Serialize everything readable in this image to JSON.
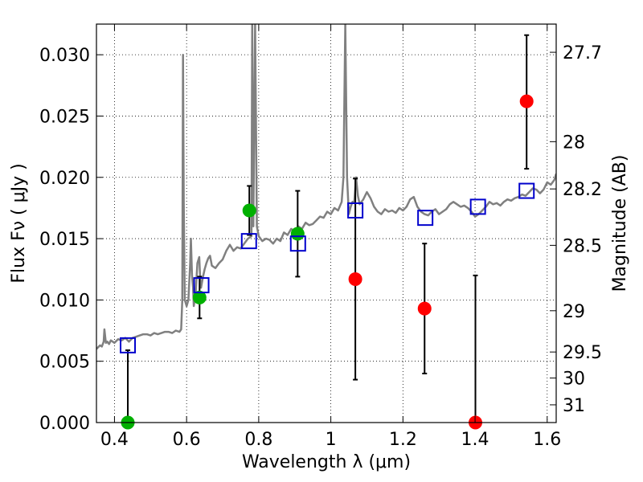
{
  "chart_data": {
    "type": "scatter",
    "xlabel": "Wavelength  λ (μm)",
    "ylabel": "Flux  Fν  ( μJy )",
    "y2label": "Magnitude (AB)",
    "xlim": [
      0.35,
      1.625
    ],
    "ylim": [
      0.0,
      0.0325
    ],
    "grid": true,
    "x_ticks": [
      {
        "value": 0.4,
        "label": "0.4"
      },
      {
        "value": 0.6,
        "label": "0.6"
      },
      {
        "value": 0.8,
        "label": "0.8"
      },
      {
        "value": 1.0,
        "label": "1"
      },
      {
        "value": 1.2,
        "label": "1.2"
      },
      {
        "value": 1.4,
        "label": "1.4"
      },
      {
        "value": 1.6,
        "label": "1.6"
      }
    ],
    "y_ticks": [
      {
        "value": 0.0,
        "label": "0.000"
      },
      {
        "value": 0.005,
        "label": "0.005"
      },
      {
        "value": 0.01,
        "label": "0.010"
      },
      {
        "value": 0.015,
        "label": "0.015"
      },
      {
        "value": 0.02,
        "label": "0.020"
      },
      {
        "value": 0.025,
        "label": "0.025"
      },
      {
        "value": 0.03,
        "label": "0.030"
      }
    ],
    "y2_ticks": [
      {
        "mag": 27.7,
        "label": "27.7"
      },
      {
        "mag": 28.0,
        "label": "28"
      },
      {
        "mag": 28.2,
        "label": "28.2"
      },
      {
        "mag": 28.5,
        "label": "28.5"
      },
      {
        "mag": 29.0,
        "label": "29"
      },
      {
        "mag": 29.5,
        "label": "29.5"
      },
      {
        "mag": 30.0,
        "label": "30"
      },
      {
        "mag": 31.0,
        "label": "31"
      }
    ],
    "colors": {
      "template": "#808080",
      "model_box": "#0000cc",
      "detection": "#00b000",
      "upper": "#ff0000",
      "errorbar": "#000000"
    },
    "template_spectrum": {
      "x": [
        0.35,
        0.36,
        0.365,
        0.37,
        0.372,
        0.376,
        0.38,
        0.385,
        0.39,
        0.4,
        0.41,
        0.42,
        0.43,
        0.44,
        0.45,
        0.46,
        0.47,
        0.48,
        0.49,
        0.5,
        0.51,
        0.52,
        0.53,
        0.54,
        0.55,
        0.56,
        0.57,
        0.58,
        0.585,
        0.588,
        0.59,
        0.592,
        0.595,
        0.6,
        0.605,
        0.61,
        0.612,
        0.615,
        0.618,
        0.62,
        0.625,
        0.63,
        0.635,
        0.638,
        0.64,
        0.645,
        0.65,
        0.655,
        0.66,
        0.665,
        0.67,
        0.68,
        0.69,
        0.7,
        0.71,
        0.72,
        0.73,
        0.74,
        0.75,
        0.76,
        0.77,
        0.78,
        0.782,
        0.785,
        0.79,
        0.795,
        0.8,
        0.81,
        0.82,
        0.83,
        0.84,
        0.85,
        0.86,
        0.87,
        0.88,
        0.89,
        0.9,
        0.91,
        0.92,
        0.93,
        0.94,
        0.95,
        0.96,
        0.97,
        0.98,
        0.99,
        1.0,
        1.01,
        1.02,
        1.03,
        1.035,
        1.04,
        1.045,
        1.05,
        1.055,
        1.06,
        1.065,
        1.07,
        1.075,
        1.08,
        1.09,
        1.1,
        1.11,
        1.12,
        1.13,
        1.14,
        1.15,
        1.16,
        1.17,
        1.18,
        1.19,
        1.2,
        1.21,
        1.22,
        1.23,
        1.24,
        1.25,
        1.26,
        1.27,
        1.28,
        1.29,
        1.3,
        1.31,
        1.32,
        1.33,
        1.34,
        1.35,
        1.36,
        1.37,
        1.38,
        1.39,
        1.4,
        1.41,
        1.42,
        1.43,
        1.44,
        1.45,
        1.46,
        1.47,
        1.48,
        1.49,
        1.5,
        1.51,
        1.52,
        1.53,
        1.54,
        1.55,
        1.56,
        1.57,
        1.58,
        1.59,
        1.6,
        1.61,
        1.62,
        1.625
      ],
      "y": [
        0.006,
        0.0063,
        0.0062,
        0.0066,
        0.0076,
        0.0065,
        0.0066,
        0.0064,
        0.0067,
        0.0065,
        0.0068,
        0.0067,
        0.0069,
        0.0066,
        0.0069,
        0.007,
        0.0071,
        0.0072,
        0.0072,
        0.0071,
        0.0073,
        0.0072,
        0.0073,
        0.0074,
        0.0074,
        0.0073,
        0.0075,
        0.0074,
        0.0076,
        0.01,
        0.03,
        0.018,
        0.01,
        0.0095,
        0.01,
        0.013,
        0.015,
        0.012,
        0.011,
        0.0095,
        0.0105,
        0.013,
        0.0135,
        0.0115,
        0.011,
        0.0118,
        0.0125,
        0.013,
        0.0134,
        0.0136,
        0.0128,
        0.0126,
        0.013,
        0.0133,
        0.014,
        0.0145,
        0.014,
        0.0143,
        0.0142,
        0.0146,
        0.015,
        0.0152,
        0.0325,
        0.016,
        0.0325,
        0.016,
        0.0152,
        0.0148,
        0.015,
        0.0149,
        0.0146,
        0.015,
        0.0148,
        0.0155,
        0.0153,
        0.0158,
        0.0156,
        0.016,
        0.0158,
        0.0163,
        0.0161,
        0.0162,
        0.0165,
        0.0168,
        0.0167,
        0.0172,
        0.017,
        0.0175,
        0.0173,
        0.018,
        0.02,
        0.0325,
        0.02,
        0.017,
        0.0176,
        0.018,
        0.018,
        0.02,
        0.0185,
        0.0178,
        0.0182,
        0.0188,
        0.0183,
        0.0176,
        0.0172,
        0.017,
        0.0174,
        0.0172,
        0.0173,
        0.0171,
        0.0175,
        0.0173,
        0.0176,
        0.0182,
        0.0184,
        0.0176,
        0.0172,
        0.017,
        0.0169,
        0.0172,
        0.0174,
        0.017,
        0.0172,
        0.0174,
        0.0178,
        0.018,
        0.0178,
        0.0176,
        0.0177,
        0.0175,
        0.0172,
        0.0168,
        0.017,
        0.0173,
        0.0176,
        0.018,
        0.0178,
        0.0179,
        0.0177,
        0.018,
        0.0182,
        0.0181,
        0.0183,
        0.0184,
        0.0186,
        0.0185,
        0.0188,
        0.0191,
        0.019,
        0.0187,
        0.019,
        0.0196,
        0.0194,
        0.0198,
        0.0203
      ]
    },
    "model_points": [
      {
        "x": 0.437,
        "y": 0.0063
      },
      {
        "x": 0.641,
        "y": 0.0112
      },
      {
        "x": 0.773,
        "y": 0.0148
      },
      {
        "x": 0.909,
        "y": 0.0146
      },
      {
        "x": 1.068,
        "y": 0.0173
      },
      {
        "x": 1.262,
        "y": 0.0167
      },
      {
        "x": 1.408,
        "y": 0.0176
      },
      {
        "x": 1.543,
        "y": 0.0189
      }
    ],
    "observed_points": [
      {
        "x": 0.437,
        "y": 0.0,
        "yerr_low": 0.0,
        "yerr_high": 0.0059,
        "kind": "detection"
      },
      {
        "x": 0.636,
        "y": 0.0102,
        "yerr_low": 0.0085,
        "yerr_high": 0.0119,
        "kind": "detection"
      },
      {
        "x": 0.774,
        "y": 0.0173,
        "yerr_low": 0.0153,
        "yerr_high": 0.0193,
        "kind": "detection"
      },
      {
        "x": 0.908,
        "y": 0.0154,
        "yerr_low": 0.0119,
        "yerr_high": 0.0189,
        "kind": "detection"
      },
      {
        "x": 1.068,
        "y": 0.0117,
        "yerr_low": 0.0035,
        "yerr_high": 0.0199,
        "kind": "upper"
      },
      {
        "x": 1.26,
        "y": 0.0093,
        "yerr_low": 0.004,
        "yerr_high": 0.0146,
        "kind": "upper"
      },
      {
        "x": 1.401,
        "y": 0.0,
        "yerr_low": 0.0,
        "yerr_high": 0.012,
        "kind": "upper"
      },
      {
        "x": 1.543,
        "y": 0.0262,
        "yerr_low": 0.0207,
        "yerr_high": 0.0316,
        "kind": "upper"
      }
    ]
  }
}
